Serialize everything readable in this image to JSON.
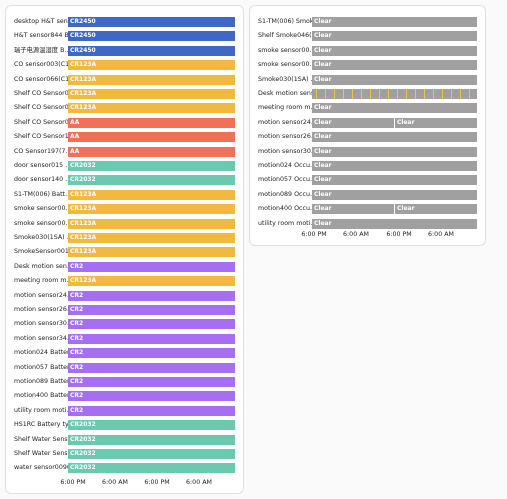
{
  "left_card": {
    "rows": [
      {
        "label": "desktop H&T sen…",
        "segments": [
          {
            "state": "CR2450",
            "color": "#3f67c5"
          }
        ]
      },
      {
        "label": "H&T sensor844 B…",
        "segments": [
          {
            "state": "CR2450",
            "color": "#3f67c5"
          }
        ]
      },
      {
        "label": "瑞子电源温湿度 B…",
        "segments": [
          {
            "state": "CR2450",
            "color": "#3f67c5"
          }
        ]
      },
      {
        "label": "CO sensor003(C1…",
        "segments": [
          {
            "state": "CR123A",
            "color": "#f2b941"
          }
        ]
      },
      {
        "label": "CO sensor066(C1…",
        "segments": [
          {
            "state": "CR123A",
            "color": "#f2b941"
          }
        ]
      },
      {
        "label": "Shelf CO Sensor0…",
        "segments": [
          {
            "state": "CR123A",
            "color": "#f2b941"
          }
        ]
      },
      {
        "label": "Shelf CO Sensor0…",
        "segments": [
          {
            "state": "CR123A",
            "color": "#f2b941"
          }
        ]
      },
      {
        "label": "Shelf CO Sensor0…",
        "segments": [
          {
            "state": "AA",
            "color": "#f0705a"
          }
        ]
      },
      {
        "label": "Shelf CO Sensor1…",
        "segments": [
          {
            "state": "AA",
            "color": "#f0705a"
          }
        ]
      },
      {
        "label": "CO Sensor197(7…",
        "segments": [
          {
            "state": "AA",
            "color": "#f0705a"
          }
        ]
      },
      {
        "label": "door sensor015 …",
        "segments": [
          {
            "state": "CR2032",
            "color": "#6bc9b0"
          }
        ]
      },
      {
        "label": "door sensor140 …",
        "segments": [
          {
            "state": "CR2032",
            "color": "#6bc9b0"
          }
        ]
      },
      {
        "label": "S1-TM(006) Batt…",
        "segments": [
          {
            "state": "CR123A",
            "color": "#f2b941"
          }
        ]
      },
      {
        "label": "smoke sensor00…",
        "segments": [
          {
            "state": "CR123A",
            "color": "#f2b941"
          }
        ]
      },
      {
        "label": "smoke sensor00…",
        "segments": [
          {
            "state": "CR123A",
            "color": "#f2b941"
          }
        ]
      },
      {
        "label": "Smoke030(1SA) …",
        "segments": [
          {
            "state": "CR123A",
            "color": "#f2b941"
          }
        ]
      },
      {
        "label": "SmokeSensor001…",
        "segments": [
          {
            "state": "CR123A",
            "color": "#f2b941"
          }
        ]
      },
      {
        "label": "Desk motion sen…",
        "segments": [
          {
            "state": "CR2",
            "color": "#a66ef0"
          }
        ]
      },
      {
        "label": "meeting room m…",
        "segments": [
          {
            "state": "CR123A",
            "color": "#f2b941"
          }
        ]
      },
      {
        "label": "motion sensor24…",
        "segments": [
          {
            "state": "CR2",
            "color": "#a66ef0"
          }
        ]
      },
      {
        "label": "motion sensor26…",
        "segments": [
          {
            "state": "CR2",
            "color": "#a66ef0"
          }
        ]
      },
      {
        "label": "motion sensor30…",
        "segments": [
          {
            "state": "CR2",
            "color": "#a66ef0"
          }
        ]
      },
      {
        "label": "motion sensor34…",
        "segments": [
          {
            "state": "CR2",
            "color": "#a66ef0"
          }
        ]
      },
      {
        "label": "motion024 Batter…",
        "segments": [
          {
            "state": "CR2",
            "color": "#a66ef0"
          }
        ]
      },
      {
        "label": "motion057 Batter…",
        "segments": [
          {
            "state": "CR2",
            "color": "#a66ef0"
          }
        ]
      },
      {
        "label": "motion089 Batter…",
        "segments": [
          {
            "state": "CR2",
            "color": "#a66ef0"
          }
        ]
      },
      {
        "label": "motion400 Batter…",
        "segments": [
          {
            "state": "CR2",
            "color": "#a66ef0"
          }
        ]
      },
      {
        "label": "utility room moti…",
        "segments": [
          {
            "state": "CR2",
            "color": "#a66ef0"
          }
        ]
      },
      {
        "label": "HS1RC Battery ty…",
        "segments": [
          {
            "state": "CR2032",
            "color": "#6bc9b0"
          }
        ]
      },
      {
        "label": "Shelf Water Sens…",
        "segments": [
          {
            "state": "CR2032",
            "color": "#6bc9b0"
          }
        ]
      },
      {
        "label": "Shelf Water Sens…",
        "segments": [
          {
            "state": "CR2032",
            "color": "#6bc9b0"
          }
        ]
      },
      {
        "label": "water sensor009(…",
        "segments": [
          {
            "state": "CR2032",
            "color": "#6bc9b0"
          }
        ]
      }
    ],
    "axis": [
      "6:00 PM",
      "6:00 AM",
      "6:00 PM",
      "6:00 AM"
    ]
  },
  "right_card": {
    "rows": [
      {
        "label": "S1-TM(006) Smoke",
        "segments": [
          {
            "state": "Clear",
            "color": "#a0a0a0"
          }
        ]
      },
      {
        "label": "Shelf Smoke046(…",
        "segments": [
          {
            "state": "Clear",
            "color": "#a0a0a0"
          }
        ]
      },
      {
        "label": "smoke sensor00…",
        "segments": [
          {
            "state": "Clear",
            "color": "#a0a0a0"
          }
        ]
      },
      {
        "label": "smoke sensor00…",
        "segments": [
          {
            "state": "Clear",
            "color": "#a0a0a0"
          }
        ]
      },
      {
        "label": "Smoke030(1SA) …",
        "segments": [
          {
            "state": "Clear",
            "color": "#a0a0a0"
          }
        ]
      },
      {
        "label": "Desk motion sens…",
        "segments": []
      },
      {
        "label": "meeting room m…",
        "segments": [
          {
            "state": "Clear",
            "color": "#a0a0a0"
          }
        ]
      },
      {
        "label": "motion sensor24…",
        "segments": [
          {
            "state": "Clear",
            "color": "#a0a0a0"
          },
          {
            "state": "Clear",
            "color": "#a0a0a0"
          }
        ]
      },
      {
        "label": "motion sensor26…",
        "segments": [
          {
            "state": "Clear",
            "color": "#a0a0a0"
          }
        ]
      },
      {
        "label": "motion sensor30…",
        "segments": [
          {
            "state": "Clear",
            "color": "#a0a0a0"
          }
        ]
      },
      {
        "label": "motion024 Occu…",
        "segments": [
          {
            "state": "Clear",
            "color": "#a0a0a0"
          }
        ]
      },
      {
        "label": "motion057 Occu…",
        "segments": [
          {
            "state": "Clear",
            "color": "#a0a0a0"
          }
        ]
      },
      {
        "label": "motion089 Occu…",
        "segments": [
          {
            "state": "Clear",
            "color": "#a0a0a0"
          }
        ]
      },
      {
        "label": "motion400 Occu…",
        "segments": [
          {
            "state": "Clear",
            "color": "#a0a0a0"
          },
          {
            "state": "Clear",
            "color": "#a0a0a0"
          }
        ]
      },
      {
        "label": "utility room moti…",
        "segments": [
          {
            "state": "Clear",
            "color": "#a0a0a0"
          }
        ]
      }
    ],
    "axis": [
      "6:00 PM",
      "6:00 AM",
      "6:00 PM",
      "6:00 AM"
    ]
  }
}
